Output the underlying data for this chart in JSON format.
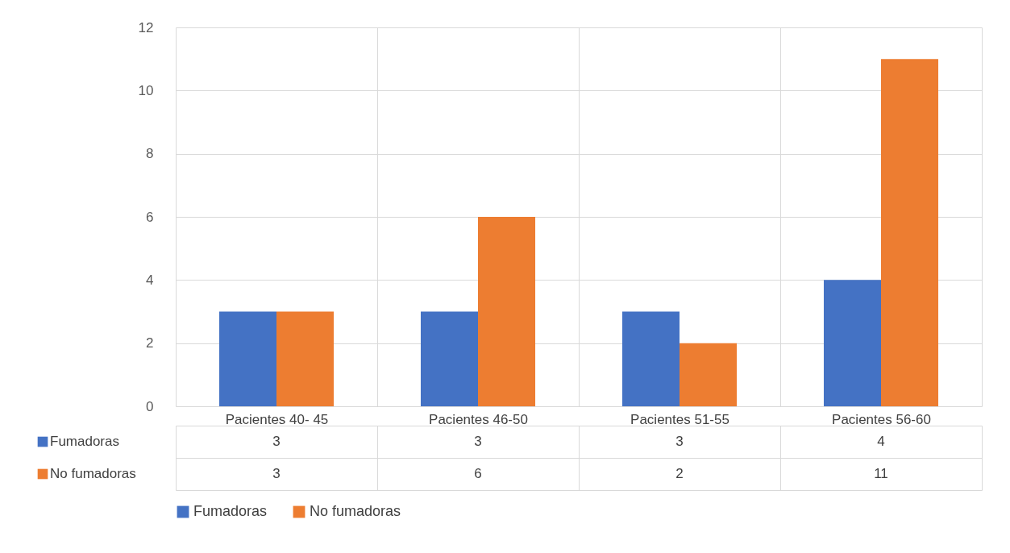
{
  "chart_data": {
    "type": "bar",
    "categories": [
      "Pacientes 40- 45",
      "Pacientes 46-50",
      "Pacientes 51-55",
      "Pacientes 56-60"
    ],
    "series": [
      {
        "name": "Fumadoras",
        "color": "#4472c4",
        "values": [
          3,
          3,
          3,
          4
        ]
      },
      {
        "name": "No fumadoras",
        "color": "#ed7d31",
        "values": [
          3,
          6,
          2,
          11
        ]
      }
    ],
    "ylim": [
      0,
      12
    ],
    "yticks": [
      0,
      2,
      4,
      6,
      8,
      10,
      12
    ],
    "grid": "y",
    "legend": "bottom",
    "data_labels": true
  }
}
